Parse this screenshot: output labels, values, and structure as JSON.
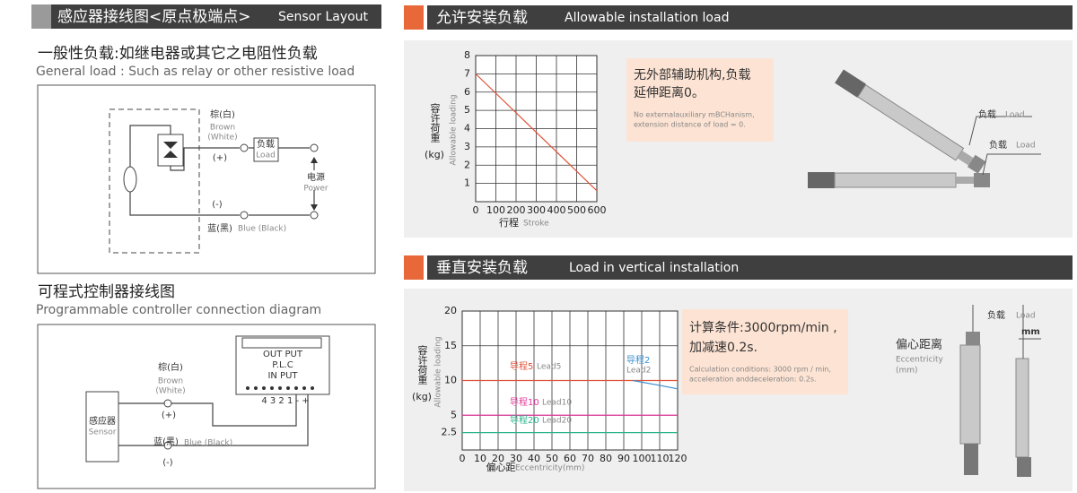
{
  "left_header": {
    "title_cn": "感应器接线图<原点极端点>",
    "title_en": "Sensor Layout"
  },
  "general_load": {
    "title": "一般性负载:如继电器或其它之电阻性负载",
    "subtitle": "General load : Such as relay or other resistive load",
    "brown_cn": "棕(白)",
    "brown_en": "Brown",
    "brown_alt": "(White)",
    "plus": "(+)",
    "load_cn": "负载",
    "load_en": "Load",
    "power_cn": "电源",
    "power_en": "Power",
    "minus": "(-)",
    "blue_cn": "蓝(黑)",
    "blue_en": "Blue (Black)"
  },
  "plc": {
    "title": "可程式控制器接线图",
    "subtitle": "Programmable controller connection diagram",
    "out": "OUT PUT",
    "name": "P.L.C",
    "in": "IN PUT",
    "pins": "4 3 2 1 - +",
    "brown_cn": "棕(白)",
    "brown_en": "Brown",
    "brown_alt": "(White)",
    "plus": "(+)",
    "sensor_cn": "感应器",
    "sensor_en": "Sensor",
    "blue_cn": "蓝(黑)",
    "blue_en": "Blue (Black)",
    "minus": "(-)"
  },
  "chart_data": [
    {
      "type": "line",
      "title": "允许安装负载",
      "title_en": "Allowable installation load",
      "x_label": "行程",
      "x_label_en": "Stroke",
      "y_label": "容许荷重",
      "y_unit": "(kg)",
      "y_label_en": "Allowable loading",
      "xlim": [
        0,
        600
      ],
      "ylim": [
        0,
        8
      ],
      "xticks": [
        0,
        100,
        200,
        300,
        400,
        500,
        600
      ],
      "yticks": [
        1,
        2,
        3,
        4,
        5,
        6,
        7,
        8
      ],
      "grid": true,
      "series": [
        {
          "color": "#e0533a",
          "x": [
            0,
            600
          ],
          "values": [
            7,
            0.6
          ]
        }
      ],
      "note_cn": [
        "无外部辅助机构,负载",
        "延伸距离0。"
      ],
      "note_en": [
        "No externalauxiliary mBCHanism,",
        "extension distance of load = 0."
      ],
      "figure_labels": {
        "load1_cn": "负载",
        "load1_en": "Load",
        "load2_cn": "负载",
        "load2_en": "Load"
      }
    },
    {
      "type": "line",
      "title": "垂直安装负载",
      "title_en": "Load in vertical installation",
      "x_label": "偏心距",
      "x_label_en": "Eccentricity(mm)",
      "y_label": "容许荷重",
      "y_unit": "(kg)",
      "y_label_en": "Allowable loading",
      "xlim": [
        0,
        120
      ],
      "ylim": [
        0,
        20
      ],
      "xticks": [
        0,
        10,
        20,
        30,
        40,
        50,
        60,
        70,
        80,
        90,
        100,
        110,
        120
      ],
      "yticks": [
        2.5,
        5,
        10,
        15,
        20
      ],
      "grid": true,
      "series": [
        {
          "name": "导程5",
          "name_en": "Lead5",
          "color": "#e0533a",
          "x": [
            0,
            120
          ],
          "values": [
            10,
            10
          ]
        },
        {
          "name": "导程2",
          "name_en": "Lead2",
          "color": "#3a8fd0",
          "x": [
            95,
            110,
            120
          ],
          "values": [
            10,
            9.3,
            8.8
          ]
        },
        {
          "name": "导程10",
          "name_en": "Lead10",
          "color": "#e03a9a",
          "x": [
            0,
            120
          ],
          "values": [
            5,
            5
          ]
        },
        {
          "name": "导程20",
          "name_en": "Lead20",
          "color": "#2bb58a",
          "x": [
            0,
            120
          ],
          "values": [
            2.5,
            2.5
          ]
        }
      ],
      "note_cn": [
        "计算条件:3000rpm/min ,",
        "加减速0.2s."
      ],
      "note_en": [
        "Calculation conditions: 3000 rpm / min,",
        "acceleration anddeceleration: 0.2s."
      ],
      "figure_labels": {
        "load_cn": "负载",
        "load_en": "Load",
        "mm": "mm",
        "ecc_cn": "偏心距离",
        "ecc_en": "Eccentricity",
        "ecc_unit": "(mm)"
      }
    }
  ]
}
